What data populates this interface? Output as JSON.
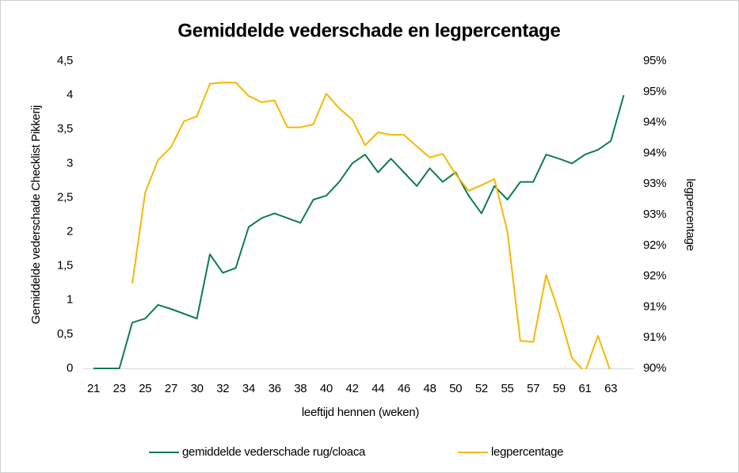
{
  "chart_data": {
    "type": "line",
    "title": "Gemiddelde vederschade en legpercentage",
    "xlabel": "leeftijd hennen (weken)",
    "ylabel": "Gemiddelde vederschade Checklist Pikkerij",
    "y2label": "legpercentage",
    "categories": [
      21,
      null,
      23,
      null,
      25,
      null,
      27,
      null,
      30,
      null,
      32,
      null,
      34,
      null,
      36,
      null,
      38,
      null,
      40,
      null,
      42,
      null,
      44,
      null,
      46,
      null,
      48,
      null,
      50,
      null,
      52,
      null,
      55,
      null,
      57,
      null,
      59,
      null,
      61,
      null,
      63,
      null
    ],
    "series": [
      {
        "name": "gemiddelde vederschade rug/cloaca",
        "color": "#0f7b55",
        "axis": "y",
        "values": [
          0,
          0,
          0,
          0.67,
          0.73,
          0.93,
          0.87,
          0.8,
          0.73,
          1.67,
          1.4,
          1.47,
          2.07,
          2.2,
          2.27,
          2.2,
          2.13,
          2.47,
          2.53,
          2.73,
          3.0,
          3.13,
          2.87,
          3.07,
          2.87,
          2.67,
          2.93,
          2.73,
          2.87,
          2.53,
          2.27,
          2.67,
          2.47,
          2.73,
          2.73,
          3.13,
          3.07,
          3.0,
          3.13,
          3.2,
          3.33,
          4.0
        ]
      },
      {
        "name": "legpercentage",
        "color": "#f5b800",
        "axis": "y2",
        "values": [
          null,
          null,
          null,
          91.38,
          92.86,
          93.39,
          93.6,
          94.02,
          94.1,
          94.63,
          94.65,
          94.65,
          94.43,
          94.33,
          94.36,
          93.92,
          93.92,
          93.97,
          94.47,
          94.23,
          94.05,
          93.63,
          93.84,
          93.8,
          93.8,
          93.61,
          93.43,
          93.49,
          93.16,
          92.89,
          92.98,
          93.08,
          92.23,
          90.45,
          90.43,
          91.52,
          90.9,
          90.17,
          89.94,
          90.53,
          89.94,
          null
        ]
      }
    ],
    "ylim": [
      0,
      4.5
    ],
    "yticks": [
      0,
      {
        "value": 0.5,
        "label": "0,5"
      },
      1,
      {
        "value": 1.5,
        "label": "1,5"
      },
      2,
      {
        "value": 2.5,
        "label": "2,5"
      },
      3,
      {
        "value": 3.5,
        "label": "3,5"
      },
      4,
      {
        "value": 4.5,
        "label": "4,5"
      }
    ],
    "y2lim": [
      90,
      95
    ],
    "y2ticks": [
      {
        "value": 90,
        "label": "90%"
      },
      {
        "value": 90.5,
        "label": "91%"
      },
      {
        "value": 91,
        "label": "91%"
      },
      {
        "value": 91.5,
        "label": "92%"
      },
      {
        "value": 92,
        "label": "92%"
      },
      {
        "value": 92.5,
        "label": "93%"
      },
      {
        "value": 93,
        "label": "93%"
      },
      {
        "value": 93.5,
        "label": "94%"
      },
      {
        "value": 94,
        "label": "94%"
      },
      {
        "value": 94.5,
        "label": "95%"
      },
      {
        "value": 95,
        "label": "95%"
      }
    ],
    "grid": false,
    "legend": "bottom"
  }
}
